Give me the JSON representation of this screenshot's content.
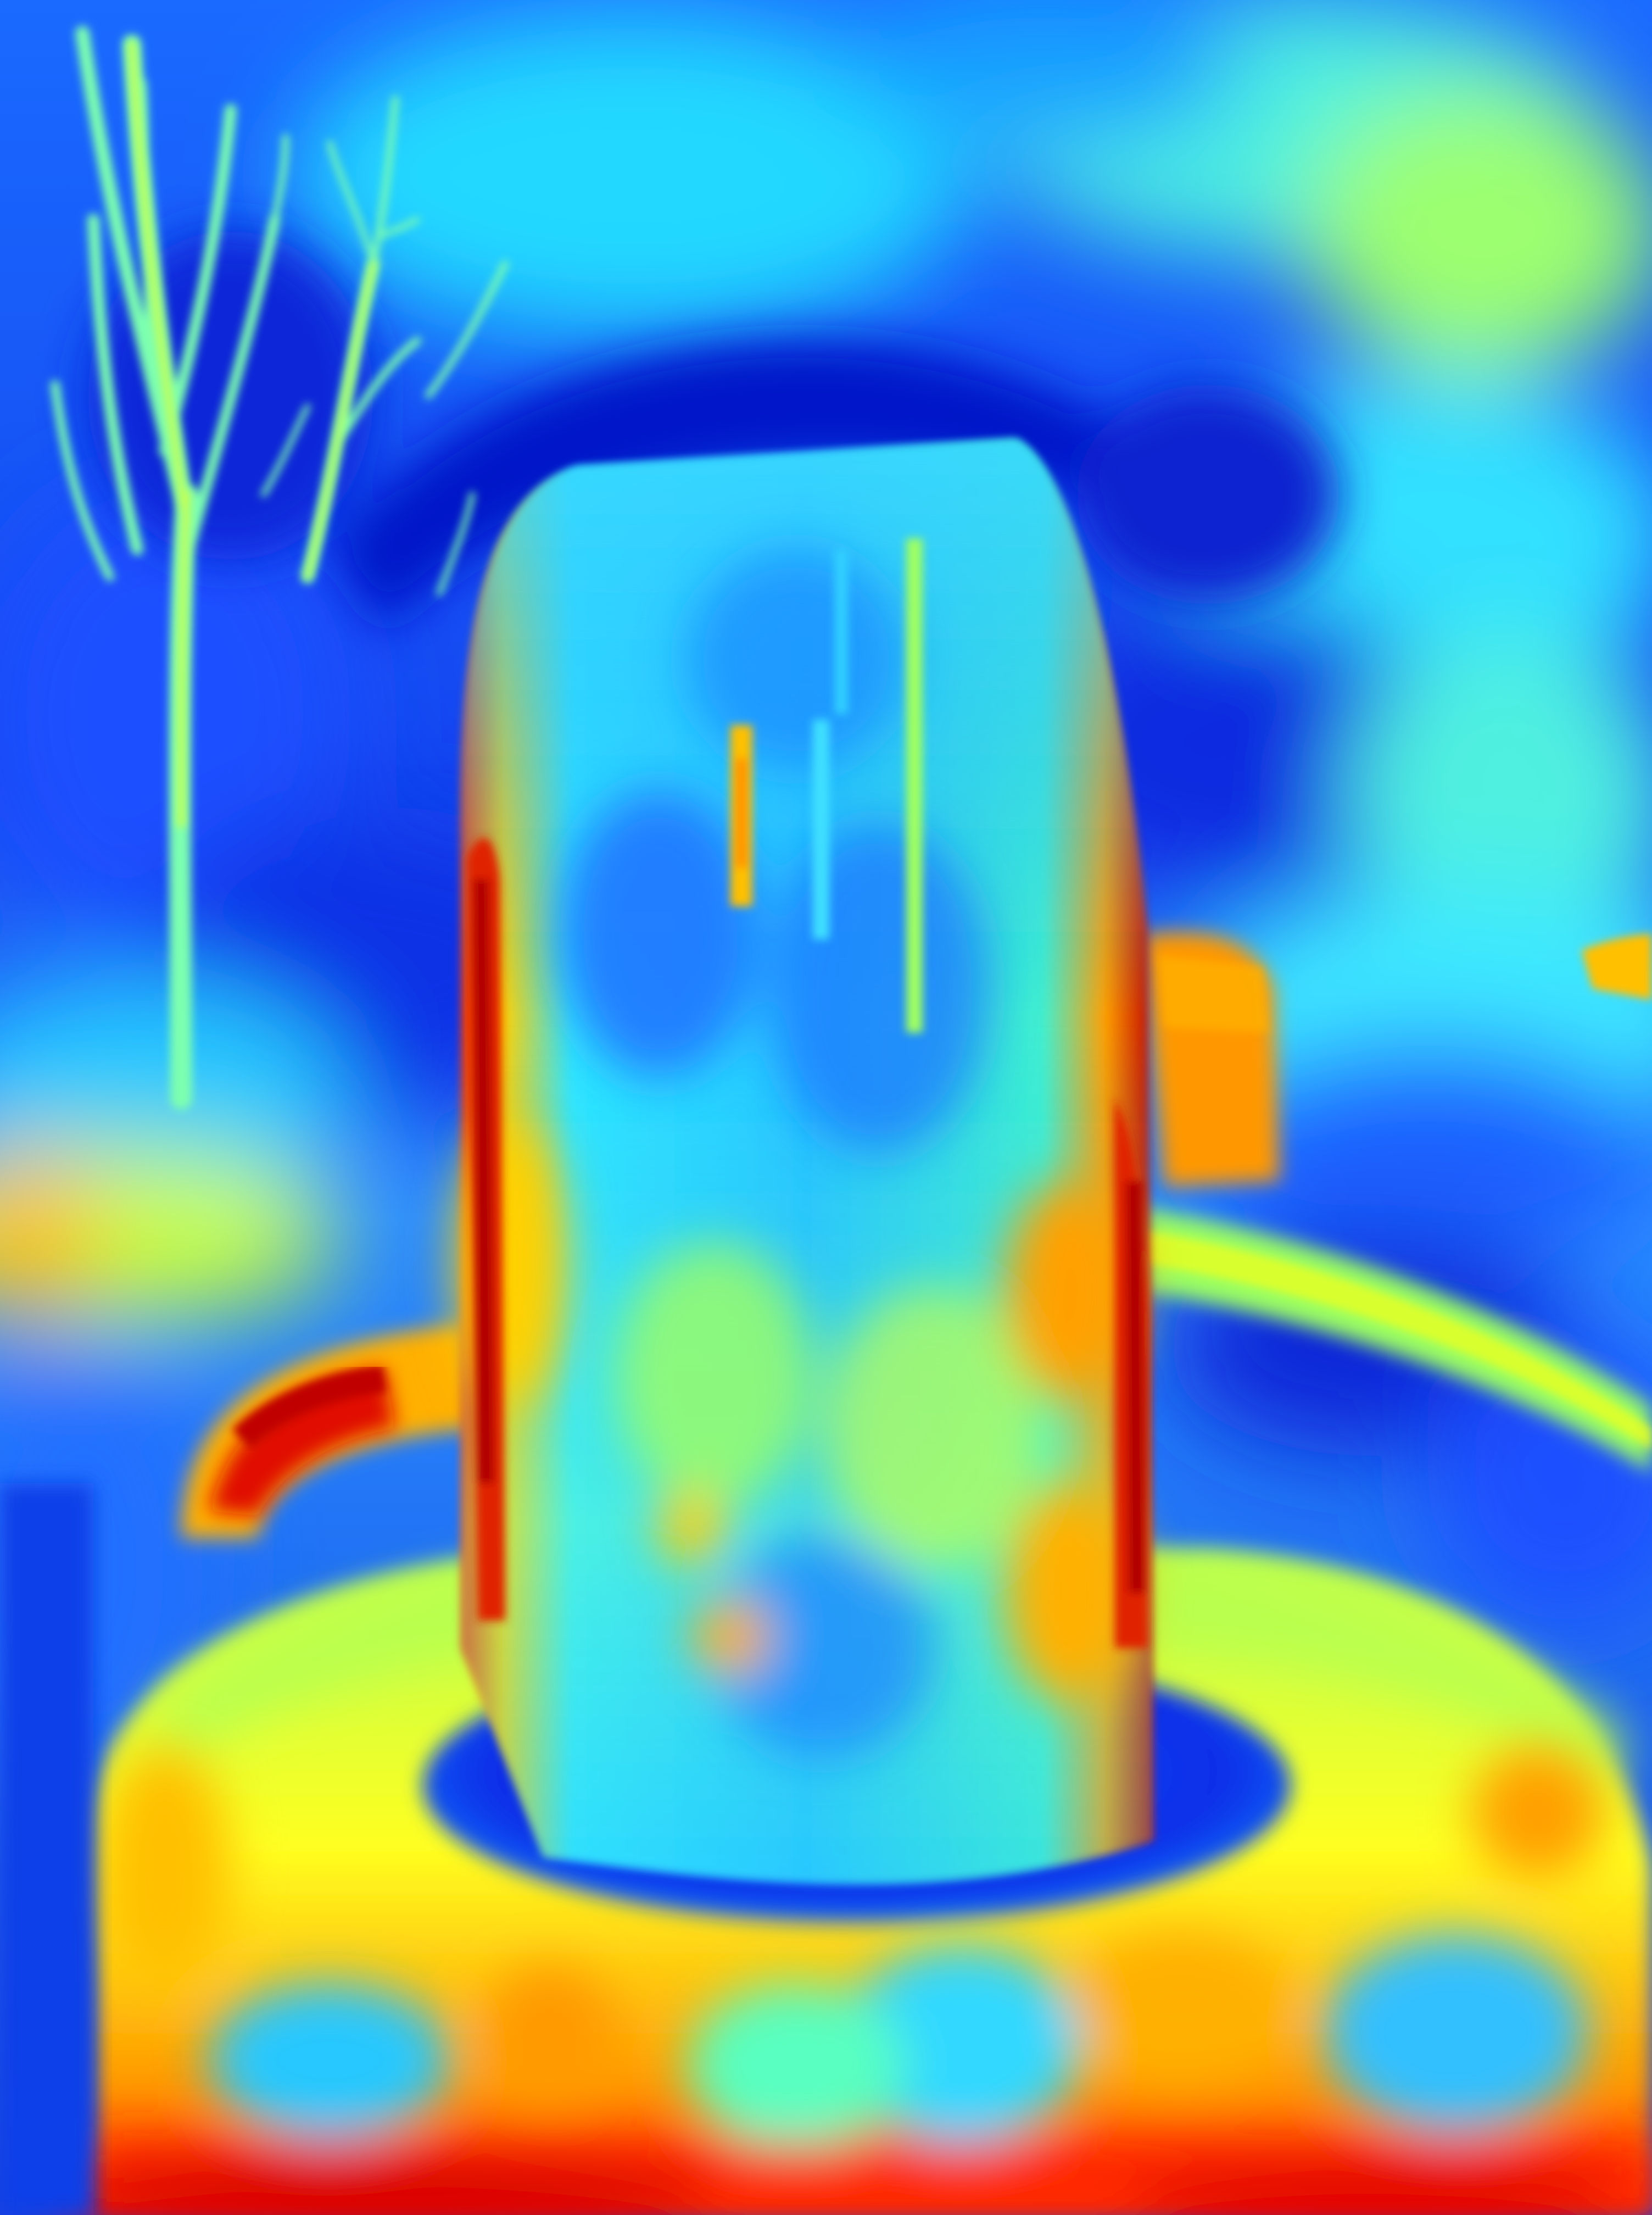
{
  "image": {
    "kind": "false-color heatmap photograph",
    "colormap": "jet",
    "palette": {
      "deep_blue": "#0018d8",
      "blue": "#1e5cff",
      "sky": "#2aa8ff",
      "cyan": "#10f0f0",
      "aqua": "#55ffc8",
      "green_yellow": "#b8ff50",
      "yellow": "#ffff10",
      "orange": "#ff9a00",
      "red": "#ff2800",
      "dark_red": "#c00000"
    },
    "subjects": [
      "tree-branches",
      "cylindrical-pillar",
      "circular-basin-rim",
      "curved-handle",
      "right-side-rail",
      "foreground-ground"
    ]
  }
}
